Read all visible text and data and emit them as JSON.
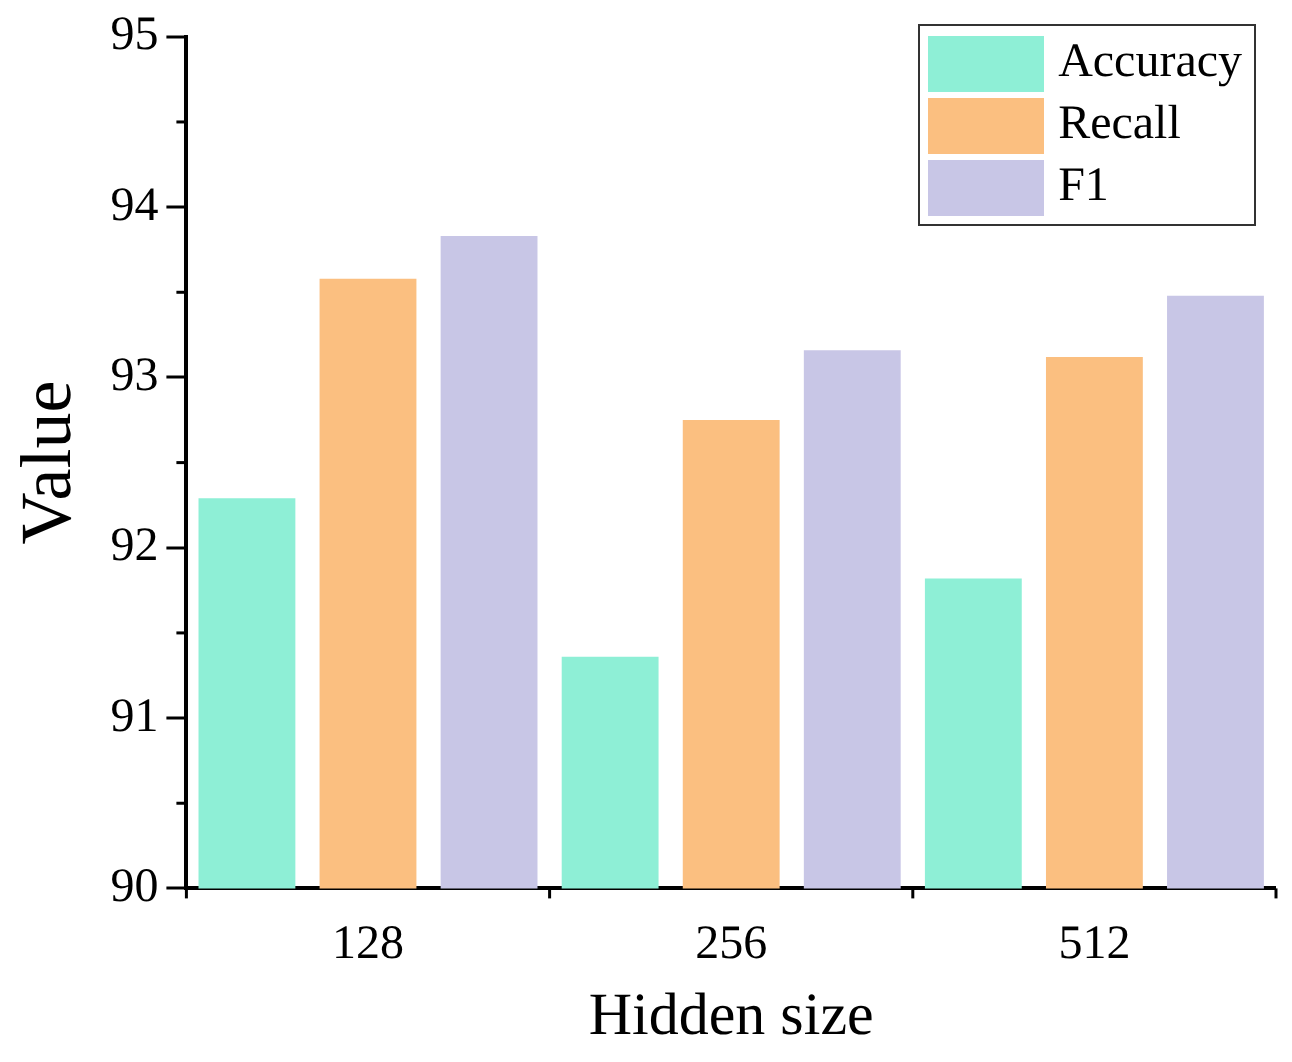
{
  "chart_data": {
    "type": "bar",
    "xlabel": "Hidden size",
    "ylabel": "Value",
    "categories": [
      "128",
      "256",
      "512"
    ],
    "series": [
      {
        "name": "Accuracy",
        "color": "#8eefd6",
        "values": [
          92.29,
          91.36,
          91.82
        ]
      },
      {
        "name": "Recall",
        "color": "#fbbf80",
        "values": [
          93.58,
          92.75,
          93.12
        ]
      },
      {
        "name": "F1",
        "color": "#c8c6e6",
        "values": [
          93.83,
          93.16,
          93.48
        ]
      }
    ],
    "ylim": [
      90,
      95
    ],
    "yticks": [
      90,
      91,
      92,
      93,
      94,
      95
    ],
    "grid": false,
    "legend": "top right"
  }
}
